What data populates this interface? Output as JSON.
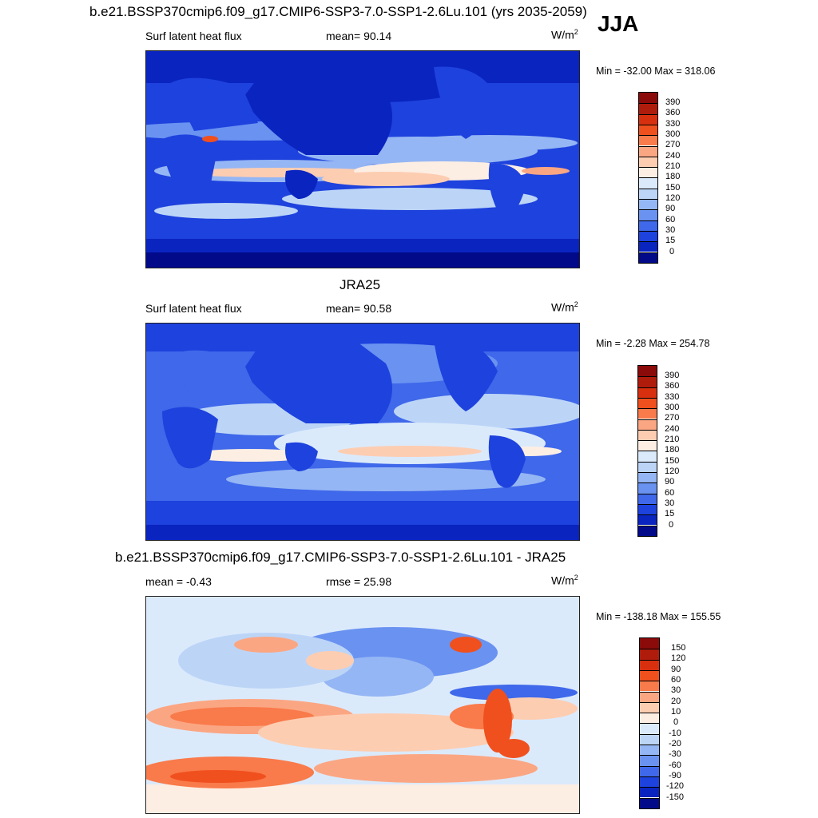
{
  "season": "JJA",
  "panels": [
    {
      "title": "b.e21.BSSP370cmip6.f09_g17.CMIP6-SSP3-7.0-SSP1-2.6Lu.101 (yrs 2035-2059)",
      "left_label": "Surf latent heat flux",
      "center_label": "mean=  90.14",
      "units": "W/m",
      "units_exp": "2",
      "minmax": "Min = -32.00 Max = 318.06",
      "colorbar": {
        "labels": [
          "390",
          "360",
          "330",
          "300",
          "270",
          "240",
          "210",
          "180",
          "150",
          "120",
          "90",
          "60",
          "30",
          "15",
          "0"
        ],
        "colors": [
          "#8b0a0a",
          "#b01c0c",
          "#d8300f",
          "#f0501e",
          "#f97a4a",
          "#fba683",
          "#fdcdb2",
          "#fdeee3",
          "#dbeafb",
          "#bcd5f7",
          "#95b6f4",
          "#6a92f1",
          "#3f68ea",
          "#1e42dd",
          "#0a24c0",
          "#020a8a"
        ]
      }
    },
    {
      "title": "JRA25",
      "left_label": "Surf latent heat flux",
      "center_label": "mean=  90.58",
      "units": "W/m",
      "units_exp": "2",
      "minmax": "Min =  -2.28 Max = 254.78",
      "colorbar": {
        "labels": [
          "390",
          "360",
          "330",
          "300",
          "270",
          "240",
          "210",
          "180",
          "150",
          "120",
          "90",
          "60",
          "30",
          "15",
          "0"
        ],
        "colors": [
          "#8b0a0a",
          "#b01c0c",
          "#d8300f",
          "#f0501e",
          "#f97a4a",
          "#fba683",
          "#fdcdb2",
          "#fdeee3",
          "#dbeafb",
          "#bcd5f7",
          "#95b6f4",
          "#6a92f1",
          "#3f68ea",
          "#1e42dd",
          "#0a24c0",
          "#020a8a"
        ]
      }
    },
    {
      "title": "b.e21.BSSP370cmip6.f09_g17.CMIP6-SSP3-7.0-SSP1-2.6Lu.101 - JRA25",
      "left_label": "mean =  -0.43",
      "center_label": "rmse =  25.98",
      "units": "W/m",
      "units_exp": "2",
      "minmax": "Min = -138.18 Max = 155.55",
      "colorbar": {
        "labels": [
          "150",
          "120",
          "90",
          "60",
          "30",
          "20",
          "10",
          "0",
          "-10",
          "-20",
          "-30",
          "-60",
          "-90",
          "-120",
          "-150"
        ],
        "colors": [
          "#8b0a0a",
          "#b01c0c",
          "#d8300f",
          "#f0501e",
          "#f97a4a",
          "#fba683",
          "#fdcdb2",
          "#fdeee3",
          "#dbeafb",
          "#bcd5f7",
          "#95b6f4",
          "#6a92f1",
          "#3f68ea",
          "#1e42dd",
          "#0a24c0",
          "#020a8a"
        ]
      }
    }
  ]
}
